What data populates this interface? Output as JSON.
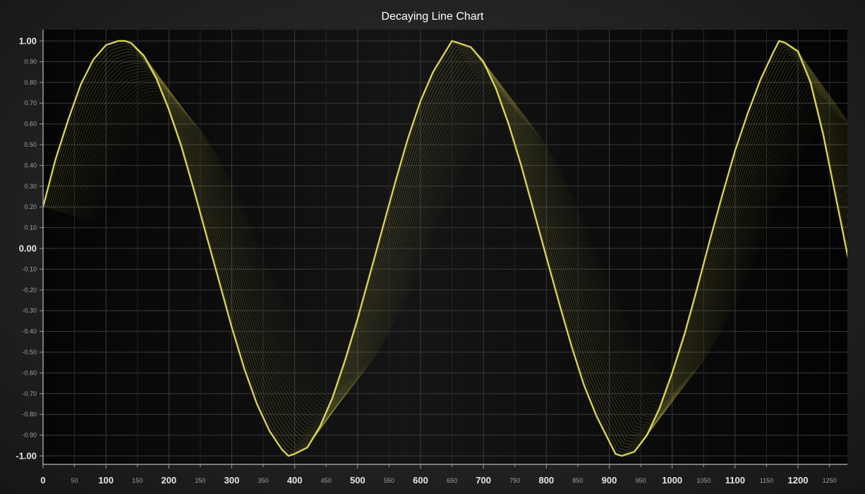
{
  "chart_data": {
    "type": "line",
    "title": "Decaying Line Chart",
    "xlabel": "",
    "ylabel": "",
    "xlim": [
      0,
      1290
    ],
    "ylim": [
      -1.05,
      1.05
    ],
    "grid": true,
    "x_ticks_major": [
      0,
      100,
      200,
      300,
      400,
      500,
      600,
      700,
      800,
      900,
      1000,
      1100,
      1200
    ],
    "x_ticks_minor": [
      50,
      150,
      250,
      350,
      450,
      550,
      650,
      750,
      850,
      950,
      1050,
      1150,
      1250
    ],
    "x_tick_labels_major": [
      "0",
      "100",
      "200",
      "300",
      "400",
      "500",
      "600",
      "700",
      "800",
      "900",
      "1000",
      "1100",
      "1200"
    ],
    "x_tick_labels_minor": [
      "50",
      "150",
      "250",
      "350",
      "450",
      "550",
      "650",
      "750",
      "850",
      "950",
      "1050",
      "1150",
      "1250"
    ],
    "y_ticks": [
      1.0,
      0.9,
      0.8,
      0.7,
      0.6,
      0.5,
      0.4,
      0.3,
      0.2,
      0.1,
      0.0,
      -0.1,
      -0.2,
      -0.3,
      -0.4,
      -0.5,
      -0.6,
      -0.7,
      -0.8,
      -0.9,
      -1.0
    ],
    "y_tick_labels": [
      "1.00",
      "0.90",
      "0.80",
      "0.70",
      "0.60",
      "0.50",
      "0.40",
      "0.30",
      "0.20",
      "0.10",
      "0.00",
      "-0.10",
      "-0.20",
      "-0.30",
      "-0.40",
      "-0.50",
      "-0.60",
      "-0.70",
      "-0.80",
      "-0.90",
      "-1.00"
    ],
    "y_major_labels": [
      "1.00",
      "0.00",
      "-1.00"
    ],
    "series": [
      {
        "x": [
          0,
          20,
          40,
          60,
          80,
          100,
          120,
          130,
          140,
          160,
          180,
          200,
          220,
          240,
          260,
          280,
          300,
          320,
          340,
          360,
          380,
          390,
          400,
          420,
          440,
          460,
          480,
          500,
          520,
          540,
          560,
          580,
          600,
          620,
          640,
          650,
          660,
          680,
          700,
          720,
          740,
          760,
          780,
          800,
          820,
          840,
          860,
          880,
          900,
          910,
          920,
          940,
          960,
          980,
          1000,
          1020,
          1040,
          1060,
          1080,
          1100,
          1120,
          1140,
          1160,
          1170,
          1180,
          1200,
          1220,
          1240,
          1260,
          1280,
          1290
        ],
        "values": [
          0.2,
          0.43,
          0.62,
          0.79,
          0.91,
          0.98,
          1.0,
          1.0,
          0.99,
          0.93,
          0.82,
          0.67,
          0.49,
          0.28,
          0.06,
          -0.16,
          -0.38,
          -0.58,
          -0.75,
          -0.88,
          -0.97,
          -1.0,
          -0.99,
          -0.96,
          -0.86,
          -0.72,
          -0.54,
          -0.34,
          -0.12,
          0.1,
          0.32,
          0.53,
          0.71,
          0.85,
          0.95,
          1.0,
          0.99,
          0.97,
          0.9,
          0.77,
          0.6,
          0.4,
          0.18,
          -0.04,
          -0.26,
          -0.47,
          -0.66,
          -0.81,
          -0.93,
          -0.99,
          -1.0,
          -0.98,
          -0.9,
          -0.77,
          -0.6,
          -0.41,
          -0.19,
          0.04,
          0.26,
          0.47,
          0.65,
          0.81,
          0.94,
          1.0,
          0.99,
          0.95,
          0.8,
          0.55,
          0.25,
          -0.05,
          -0.2
        ]
      }
    ],
    "colors": {
      "line": "#e4de57",
      "plot_background": "#000000",
      "grid": "#3a3a3a",
      "axis": "#9c9c9c",
      "title": "#ffffff",
      "tick_text": "#e6e6e6",
      "tick_text_minor": "#a0a0a0"
    }
  }
}
